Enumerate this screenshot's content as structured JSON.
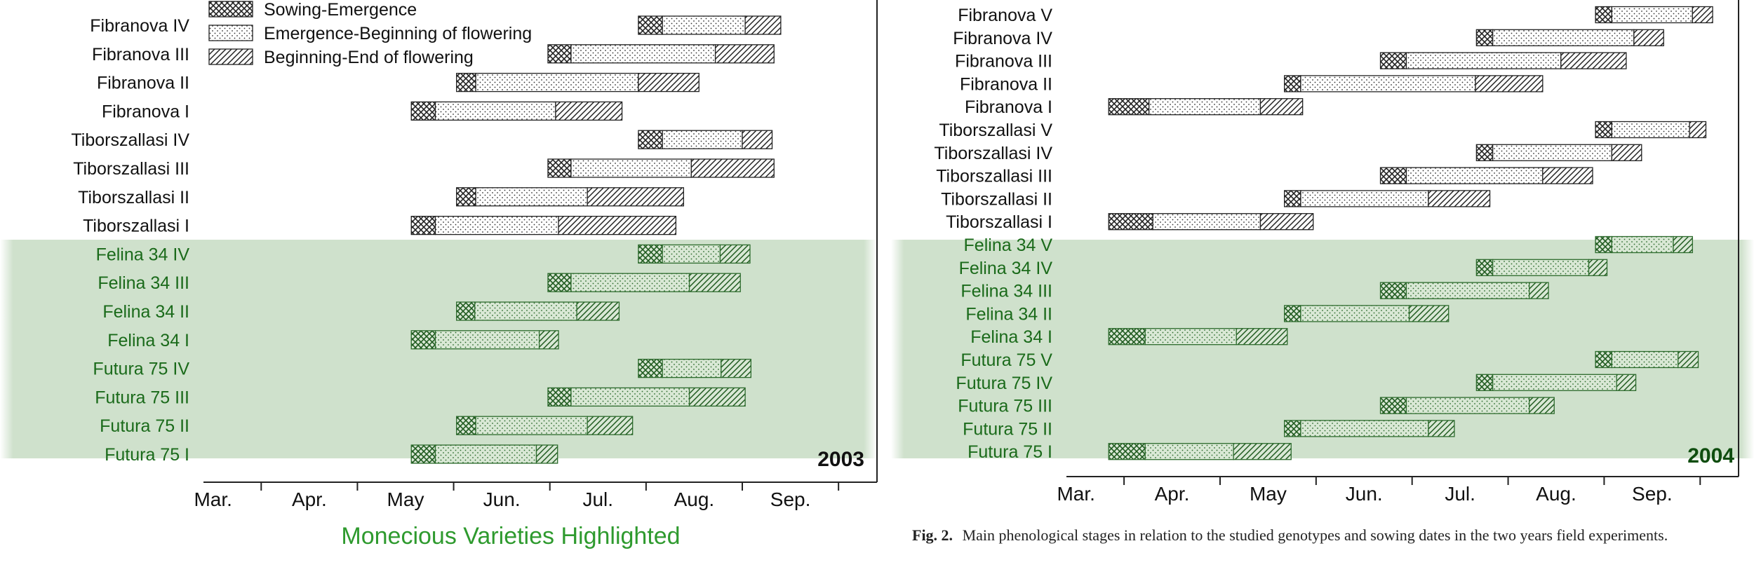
{
  "legend": [
    {
      "key": "sowing",
      "label": "Sowing-Emergence",
      "pattern": "crosshatch"
    },
    {
      "key": "emerg",
      "label": "Emergence-Beginning of flowering",
      "pattern": "dots"
    },
    {
      "key": "flower",
      "label": "Beginning-End of flowering",
      "pattern": "diagonal"
    }
  ],
  "highlight_note": "Monecious Varieties Highlighted",
  "caption": {
    "prefix": "Fig. 2.",
    "text": "Main phenological stages in relation to the studied genotypes and sowing dates in the two years field experiments."
  },
  "colors": {
    "highlight_band": "#cfe1cc",
    "highlight_text": "#1a6a1a",
    "highlight_stroke": "#2d6b2d",
    "normal_stroke": "#222222",
    "footer_green": "#2e9a2e"
  },
  "chart_data": [
    {
      "type": "gantt",
      "title": "2003",
      "x_unit": "month (1 = start of Mar.)",
      "x_ticks": [
        "Mar.",
        "Apr.",
        "May",
        "Jun.",
        "Jul.",
        "Aug.",
        "Sep."
      ],
      "xlim": [
        0.4,
        7.4
      ],
      "highlight_rows": [
        "Felina 34 IV",
        "Felina 34 III",
        "Felina 34 II",
        "Felina 34 I",
        "Futura 75 IV",
        "Futura 75 III",
        "Futura 75 II",
        "Futura 75 I"
      ],
      "rows": [
        {
          "label": "Fibranova IV",
          "sowing": [
            4.92,
            5.17
          ],
          "emerg": [
            5.17,
            6.03
          ],
          "flower": [
            6.03,
            6.4
          ]
        },
        {
          "label": "Fibranova III",
          "sowing": [
            3.98,
            4.22
          ],
          "emerg": [
            4.22,
            5.72
          ],
          "flower": [
            5.72,
            6.33
          ]
        },
        {
          "label": "Fibranova II",
          "sowing": [
            3.03,
            3.23
          ],
          "emerg": [
            3.23,
            4.92
          ],
          "flower": [
            4.92,
            5.55
          ]
        },
        {
          "label": "Fibranova I",
          "sowing": [
            2.56,
            2.81
          ],
          "emerg": [
            2.81,
            4.06
          ],
          "flower": [
            4.06,
            4.75
          ]
        },
        {
          "label": "Tiborszallasi IV",
          "sowing": [
            4.92,
            5.17
          ],
          "emerg": [
            5.17,
            6.0
          ],
          "flower": [
            6.0,
            6.31
          ]
        },
        {
          "label": "Tiborszallasi III",
          "sowing": [
            3.98,
            4.22
          ],
          "emerg": [
            4.22,
            5.47
          ],
          "flower": [
            5.47,
            6.33
          ]
        },
        {
          "label": "Tiborszallasi II",
          "sowing": [
            3.03,
            3.23
          ],
          "emerg": [
            3.23,
            4.39
          ],
          "flower": [
            4.39,
            5.39
          ]
        },
        {
          "label": "Tiborszallasi I",
          "sowing": [
            2.56,
            2.81
          ],
          "emerg": [
            2.81,
            4.09
          ],
          "flower": [
            4.09,
            5.31
          ]
        },
        {
          "label": "Felina 34 IV",
          "sowing": [
            4.92,
            5.17
          ],
          "emerg": [
            5.17,
            5.77
          ],
          "flower": [
            5.77,
            6.08
          ]
        },
        {
          "label": "Felina 34 III",
          "sowing": [
            3.98,
            4.22
          ],
          "emerg": [
            4.22,
            5.45
          ],
          "flower": [
            5.45,
            5.98
          ]
        },
        {
          "label": "Felina 34 II",
          "sowing": [
            3.03,
            3.22
          ],
          "emerg": [
            3.22,
            4.28
          ],
          "flower": [
            4.28,
            4.72
          ]
        },
        {
          "label": "Felina 34 I",
          "sowing": [
            2.56,
            2.81
          ],
          "emerg": [
            2.81,
            3.89
          ],
          "flower": [
            3.89,
            4.09
          ]
        },
        {
          "label": "Futura 75 IV",
          "sowing": [
            4.92,
            5.17
          ],
          "emerg": [
            5.17,
            5.78
          ],
          "flower": [
            5.78,
            6.09
          ]
        },
        {
          "label": "Futura 75 III",
          "sowing": [
            3.98,
            4.22
          ],
          "emerg": [
            4.22,
            5.45
          ],
          "flower": [
            5.45,
            6.03
          ]
        },
        {
          "label": "Futura 75 II",
          "sowing": [
            3.03,
            3.23
          ],
          "emerg": [
            3.23,
            4.39
          ],
          "flower": [
            4.39,
            4.86
          ]
        },
        {
          "label": "Futura 75 I",
          "sowing": [
            2.56,
            2.81
          ],
          "emerg": [
            2.81,
            3.86
          ],
          "flower": [
            3.86,
            4.08
          ]
        }
      ]
    },
    {
      "type": "gantt",
      "title": "2004",
      "x_unit": "month (1 = start of Mar.)",
      "x_ticks": [
        "Mar.",
        "Apr.",
        "May",
        "Jun.",
        "Jul.",
        "Aug.",
        "Sep."
      ],
      "xlim": [
        0.4,
        7.4
      ],
      "highlight_rows": [
        "Felina 34 V",
        "Felina 34 IV",
        "Felina 34 III",
        "Felina 34 II",
        "Felina 34 I",
        "Futura 75 V",
        "Futura 75 IV",
        "Futura 75 III",
        "Futura 75 II",
        "Futura 75 I"
      ],
      "rows": [
        {
          "label": "Fibranova V",
          "sowing": [
            5.91,
            6.08
          ],
          "emerg": [
            6.08,
            6.92
          ],
          "flower": [
            6.92,
            7.13
          ]
        },
        {
          "label": "Fibranova IV",
          "sowing": [
            4.67,
            4.84
          ],
          "emerg": [
            4.84,
            6.31
          ],
          "flower": [
            6.31,
            6.62
          ]
        },
        {
          "label": "Fibranova III",
          "sowing": [
            3.67,
            3.94
          ],
          "emerg": [
            3.94,
            5.55
          ],
          "flower": [
            5.55,
            6.23
          ]
        },
        {
          "label": "Fibranova II",
          "sowing": [
            2.67,
            2.84
          ],
          "emerg": [
            2.84,
            4.66
          ],
          "flower": [
            4.66,
            5.36
          ]
        },
        {
          "label": "Fibranova I",
          "sowing": [
            0.84,
            1.26
          ],
          "emerg": [
            1.26,
            2.42
          ],
          "flower": [
            2.42,
            2.86
          ]
        },
        {
          "label": "Tiborszallasi V",
          "sowing": [
            5.91,
            6.08
          ],
          "emerg": [
            6.08,
            6.89
          ],
          "flower": [
            6.89,
            7.06
          ]
        },
        {
          "label": "Tiborszallasi IV",
          "sowing": [
            4.67,
            4.84
          ],
          "emerg": [
            4.84,
            6.08
          ],
          "flower": [
            6.08,
            6.39
          ]
        },
        {
          "label": "Tiborszallasi III",
          "sowing": [
            3.67,
            3.94
          ],
          "emerg": [
            3.94,
            5.36
          ],
          "flower": [
            5.36,
            5.88
          ]
        },
        {
          "label": "Tiborszallasi II",
          "sowing": [
            2.67,
            2.84
          ],
          "emerg": [
            2.84,
            4.17
          ],
          "flower": [
            4.17,
            4.81
          ]
        },
        {
          "label": "Tiborszallasi I",
          "sowing": [
            0.84,
            1.3
          ],
          "emerg": [
            1.3,
            2.42
          ],
          "flower": [
            2.42,
            2.97
          ]
        },
        {
          "label": "Felina 34 V",
          "sowing": [
            5.91,
            6.08
          ],
          "emerg": [
            6.08,
            6.72
          ],
          "flower": [
            6.72,
            6.92
          ]
        },
        {
          "label": "Felina 34 IV",
          "sowing": [
            4.67,
            4.84
          ],
          "emerg": [
            4.84,
            5.84
          ],
          "flower": [
            5.84,
            6.03
          ]
        },
        {
          "label": "Felina 34 III",
          "sowing": [
            3.67,
            3.94
          ],
          "emerg": [
            3.94,
            5.22
          ],
          "flower": [
            5.22,
            5.42
          ]
        },
        {
          "label": "Felina 34 II",
          "sowing": [
            2.67,
            2.84
          ],
          "emerg": [
            2.84,
            3.97
          ],
          "flower": [
            3.97,
            4.38
          ]
        },
        {
          "label": "Felina 34 I",
          "sowing": [
            0.84,
            1.22
          ],
          "emerg": [
            1.22,
            2.17
          ],
          "flower": [
            2.17,
            2.7
          ]
        },
        {
          "label": "Futura 75 V",
          "sowing": [
            5.91,
            6.08
          ],
          "emerg": [
            6.08,
            6.77
          ],
          "flower": [
            6.77,
            6.98
          ]
        },
        {
          "label": "Futura 75 IV",
          "sowing": [
            4.67,
            4.84
          ],
          "emerg": [
            4.84,
            6.13
          ],
          "flower": [
            6.13,
            6.33
          ]
        },
        {
          "label": "Futura 75 III",
          "sowing": [
            3.67,
            3.94
          ],
          "emerg": [
            3.94,
            5.22
          ],
          "flower": [
            5.22,
            5.48
          ]
        },
        {
          "label": "Futura 75 II",
          "sowing": [
            2.67,
            2.84
          ],
          "emerg": [
            2.84,
            4.17
          ],
          "flower": [
            4.17,
            4.44
          ]
        },
        {
          "label": "Futura 75 I",
          "sowing": [
            0.84,
            1.22
          ],
          "emerg": [
            1.22,
            2.14
          ],
          "flower": [
            2.14,
            2.74
          ]
        }
      ]
    }
  ]
}
